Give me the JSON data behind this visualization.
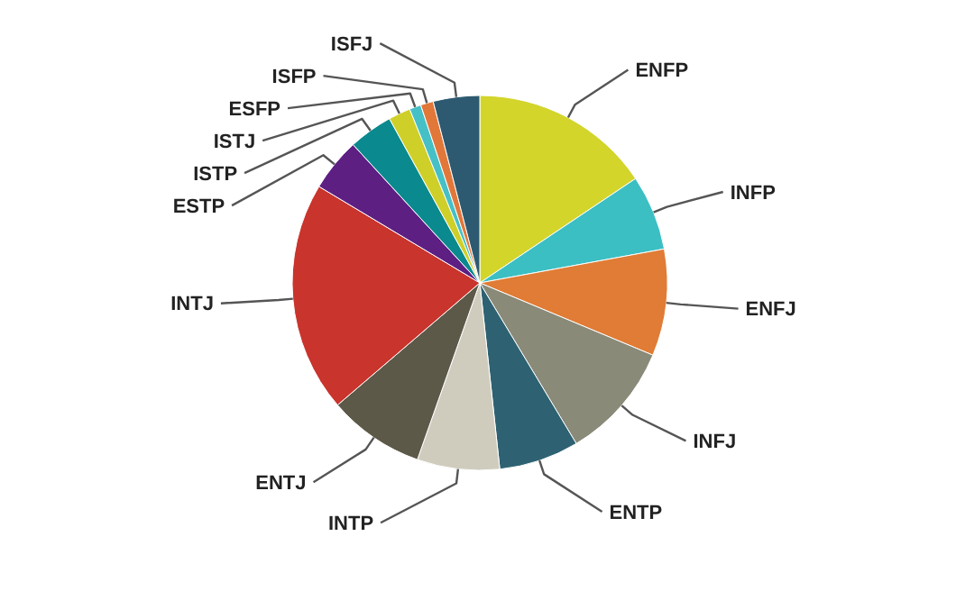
{
  "chart_data": {
    "type": "pie",
    "categories": [
      "ENFP",
      "INFP",
      "ENFJ",
      "INFJ",
      "ENTP",
      "INTP",
      "ENTJ",
      "INTJ",
      "ESTP",
      "ISTP",
      "ISTJ",
      "ESFP",
      "ISFP",
      "ISFJ"
    ],
    "values": [
      15.6,
      6.5,
      9.2,
      10.1,
      6.9,
      7.1,
      8.3,
      19.9,
      4.6,
      3.8,
      1.9,
      1.0,
      1.1,
      4.0
    ],
    "colors": [
      "#d3d52b",
      "#3bbfc3",
      "#e07c35",
      "#8a8a79",
      "#2e6272",
      "#cfccbe",
      "#5d5948",
      "#c9342c",
      "#5e1f83",
      "#0a8a8f",
      "#cfcf2a",
      "#45c0c6",
      "#e2773a",
      "#2d5a70"
    ]
  }
}
